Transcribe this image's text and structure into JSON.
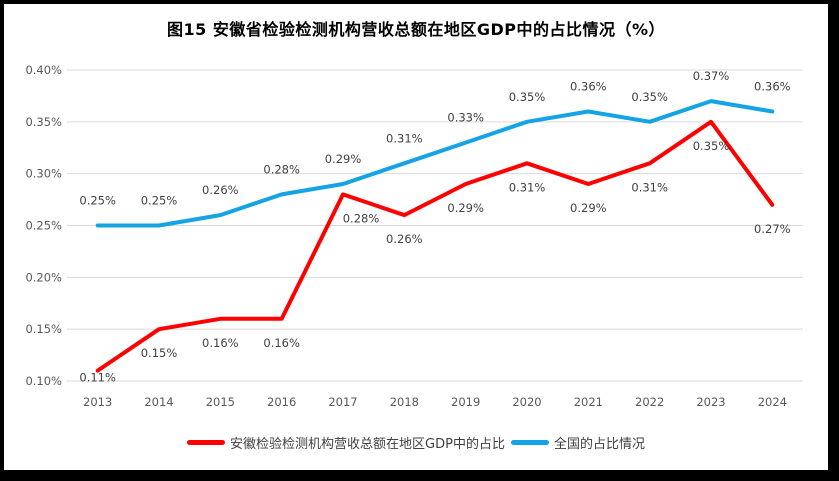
{
  "frame": {
    "background": "#ffffff",
    "border_color": "#000000"
  },
  "chart_data": {
    "type": "line",
    "title": "图15 安徽省检验检测机构营收总额在地区GDP中的占比情况（%）",
    "categories": [
      "2013",
      "2014",
      "2015",
      "2016",
      "2017",
      "2018",
      "2019",
      "2020",
      "2021",
      "2022",
      "2023",
      "2024"
    ],
    "xlabel": "",
    "ylabel": "",
    "ylim": [
      0.1,
      0.4
    ],
    "ytick_labels": [
      "0.40%",
      "0.35%",
      "0.30%",
      "0.25%",
      "0.20%",
      "0.15%",
      "0.10%"
    ],
    "ytick_values": [
      0.4,
      0.35,
      0.3,
      0.25,
      0.2,
      0.15,
      0.1
    ],
    "grid": true,
    "gridline_color": "#D9D9D9",
    "axis_label_color": "#595959",
    "data_label_color": "#404040",
    "legend_position": "bottom",
    "series": [
      {
        "name": "安徽检验检测机构营收总额在地区GDP中的占比",
        "color": "#FF0000",
        "values": [
          0.11,
          0.15,
          0.16,
          0.16,
          0.28,
          0.26,
          0.29,
          0.31,
          0.29,
          0.31,
          0.35,
          0.27
        ],
        "labels": [
          "0.11%",
          "0.15%",
          "0.16%",
          "0.16%",
          "0.28%",
          "0.26%",
          "0.29%",
          "0.31%",
          "0.29%",
          "0.31%",
          "0.35%",
          "0.27%"
        ],
        "label_side": "below",
        "label_dx": [
          0,
          0,
          0,
          0,
          18,
          0,
          0,
          0,
          0,
          0,
          0,
          0
        ],
        "label_dy": [
          -17,
          0,
          0,
          0,
          0,
          0,
          0,
          0,
          0,
          0,
          0,
          0
        ]
      },
      {
        "name": "全国的占比情况",
        "color": "#14A3E4",
        "values": [
          0.25,
          0.25,
          0.26,
          0.28,
          0.29,
          0.31,
          0.33,
          0.35,
          0.36,
          0.35,
          0.37,
          0.36
        ],
        "labels": [
          "0.25%",
          "0.25%",
          "0.26%",
          "0.28%",
          "0.29%",
          "0.31%",
          "0.33%",
          "0.35%",
          "0.36%",
          "0.35%",
          "0.37%",
          "0.36%"
        ],
        "label_side": "above",
        "label_dx": [
          0,
          0,
          0,
          0,
          0,
          0,
          0,
          0,
          0,
          0,
          0,
          0
        ],
        "label_dy": [
          0,
          0,
          0,
          0,
          0,
          0,
          0,
          0,
          0,
          0,
          0,
          0
        ]
      }
    ]
  }
}
